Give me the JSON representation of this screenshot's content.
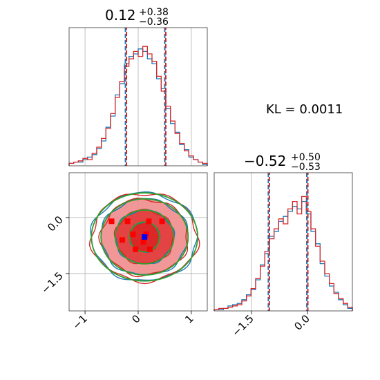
{
  "chart_data": {
    "type": "corner",
    "kl_label": "KL = 0.0011",
    "colors": {
      "red": "#d62728",
      "blue": "#1f77b4",
      "green": "#2ca02c",
      "fill": "#f08c8c",
      "fill_dark": "#e03434",
      "marker_red": "#ff0000",
      "marker_blue": "#0000ff"
    },
    "params": [
      {
        "title_value": "0.12",
        "title_plus": "+0.38",
        "title_minus": "−0.36",
        "median": 0.12,
        "lower": -0.24,
        "upper": 0.5,
        "range": [
          -1.3,
          1.3
        ],
        "ticks": [
          -1,
          0,
          1
        ],
        "tick_labels": [
          "−1",
          "0",
          "1"
        ],
        "hist_red": [
          0.02,
          0.03,
          0.04,
          0.06,
          0.05,
          0.1,
          0.15,
          0.22,
          0.3,
          0.42,
          0.55,
          0.68,
          0.8,
          0.86,
          0.92,
          0.88,
          0.96,
          0.9,
          0.84,
          0.72,
          0.6,
          0.48,
          0.36,
          0.26,
          0.18,
          0.12,
          0.08,
          0.05,
          0.03,
          0.02
        ],
        "hist_blue": [
          0.02,
          0.03,
          0.03,
          0.05,
          0.07,
          0.09,
          0.14,
          0.2,
          0.31,
          0.4,
          0.57,
          0.66,
          0.82,
          0.88,
          0.9,
          0.94,
          0.92,
          0.86,
          0.82,
          0.7,
          0.62,
          0.46,
          0.34,
          0.27,
          0.17,
          0.13,
          0.07,
          0.05,
          0.03,
          0.01
        ]
      },
      {
        "title_value": "−0.52",
        "title_plus": "+0.50",
        "title_minus": "−0.53",
        "median": -0.52,
        "lower": -1.05,
        "upper": -0.02,
        "range": [
          -2.5,
          1.2
        ],
        "ticks": [
          -1.5,
          0.0
        ],
        "tick_labels": [
          "−1.5",
          "0.0"
        ],
        "hist_red": [
          0.01,
          0.02,
          0.02,
          0.03,
          0.04,
          0.05,
          0.08,
          0.12,
          0.18,
          0.26,
          0.36,
          0.48,
          0.58,
          0.66,
          0.74,
          0.7,
          0.82,
          0.88,
          0.78,
          0.92,
          0.8,
          0.66,
          0.52,
          0.4,
          0.3,
          0.22,
          0.14,
          0.1,
          0.06,
          0.03
        ],
        "hist_blue": [
          0.01,
          0.01,
          0.02,
          0.04,
          0.05,
          0.06,
          0.09,
          0.13,
          0.17,
          0.25,
          0.37,
          0.46,
          0.6,
          0.64,
          0.72,
          0.76,
          0.8,
          0.84,
          0.82,
          0.88,
          0.78,
          0.64,
          0.54,
          0.38,
          0.28,
          0.2,
          0.15,
          0.09,
          0.05,
          0.02
        ]
      }
    ],
    "joint": {
      "center": [
        0.12,
        -0.52
      ],
      "contour_radii_x": [
        0.28,
        0.55,
        0.82,
        1.0
      ],
      "contour_radii_y": [
        0.4,
        0.72,
        1.02,
        1.18
      ],
      "red_points": [
        [
          -0.5,
          -0.1
        ],
        [
          -0.2,
          -0.1
        ],
        [
          0.2,
          -0.1
        ],
        [
          0.45,
          -0.1
        ],
        [
          -0.1,
          -0.45
        ],
        [
          0.15,
          -0.45
        ],
        [
          -0.3,
          -0.6
        ],
        [
          -0.05,
          -0.85
        ],
        [
          0.22,
          -0.85
        ],
        [
          0.1,
          -0.65
        ]
      ],
      "blue_point": [
        0.12,
        -0.52
      ]
    }
  }
}
